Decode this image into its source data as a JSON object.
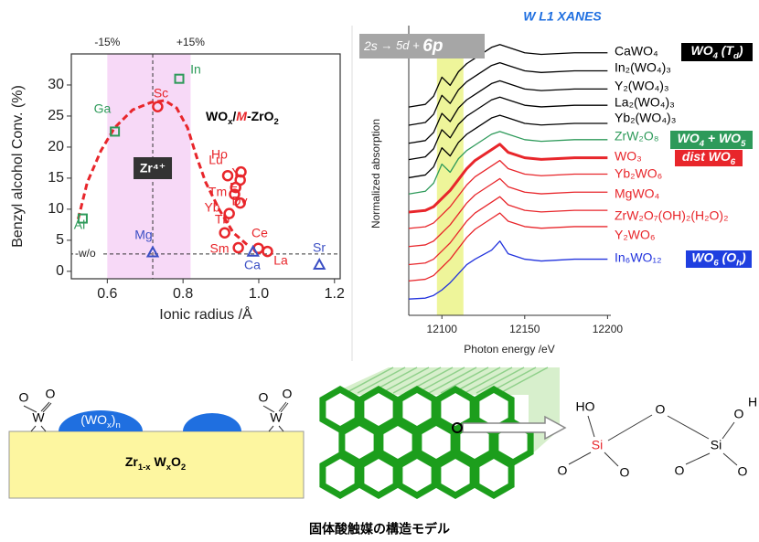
{
  "chart_data": [
    {
      "type": "scatter",
      "title": [
        {
          "text": "WO"
        },
        {
          "text": "x",
          "sub": true
        },
        {
          "text": "/"
        },
        {
          "text": "M",
          "color": "#e8262b",
          "italic": true
        },
        {
          "text": "-ZrO"
        },
        {
          "text": "2",
          "sub": true
        }
      ],
      "x_label": "Ionic radius /Å",
      "y_label": "Benzyl alcohol Conv. (%)",
      "xlim": [
        0.505,
        1.215
      ],
      "ylim": [
        -1.2,
        35
      ],
      "xticks": [
        0.6,
        0.8,
        {
          "value": 1,
          "label": "1.0"
        },
        1.2
      ],
      "yticks": [
        0,
        5,
        10,
        15,
        20,
        25,
        30
      ],
      "highlight": {
        "range": [
          0.6,
          0.82
        ],
        "labels": [
          "-15%",
          "+15%"
        ],
        "color": "#f7d9f7"
      },
      "reference": {
        "value": 0.72,
        "label": "Zr⁴⁺"
      },
      "baseline": {
        "value": 2.8,
        "label": "-w/o"
      },
      "fit": {
        "color": "#e8262b",
        "x": [
          0.523,
          0.547,
          0.583,
          0.619,
          0.667,
          0.716,
          0.752,
          0.783,
          0.812,
          0.836,
          0.86,
          0.896,
          0.933,
          0.969
        ],
        "values": [
          8.4,
          14.3,
          19.4,
          23.1,
          26.0,
          27.2,
          27.5,
          26.3,
          23.1,
          18.4,
          14.3,
          9.9,
          6.2,
          4.3
        ]
      },
      "series": [
        {
          "marker": "square",
          "color": "#2e9a5a",
          "labels": [
            "Al",
            "Ga",
            "In"
          ],
          "x": [
            0.535,
            0.62,
            0.79
          ],
          "values": [
            8.5,
            22.5,
            31
          ]
        },
        {
          "marker": "circle",
          "color": "#e8262b",
          "labels": [
            "Sc",
            "Lu",
            "Ho",
            "Y",
            "Er",
            "Tm",
            "Dy",
            "Yb",
            "Tb",
            "Sm",
            "Ce",
            "La"
          ],
          "x": [
            0.733,
            0.918,
            0.953,
            0.951,
            0.939,
            0.936,
            0.951,
            0.922,
            0.91,
            0.946,
            0.999,
            1.023
          ],
          "values": [
            26.5,
            15.4,
            16.0,
            14.7,
            13.5,
            12.4,
            11.0,
            9.3,
            6.2,
            3.8,
            3.7,
            3.2
          ]
        },
        {
          "marker": "triangle",
          "color": "#3b4fc4",
          "labels": [
            "Mg",
            "Ca",
            "Sr"
          ],
          "x": [
            0.72,
            0.985,
            1.16
          ],
          "values": [
            3,
            3.1,
            1.0
          ]
        }
      ]
    },
    {
      "type": "line",
      "title": "W L1 XANES",
      "x_label": "Photon energy /eV",
      "y_label": "Normalized absorption",
      "xlim": [
        12080,
        12202
      ],
      "ylim": [
        0,
        16
      ],
      "xticks": [
        12100,
        12150,
        12200
      ],
      "highlight": {
        "range": [
          12097,
          12113
        ],
        "color": "#eef59a"
      },
      "banner": [
        {
          "text": "2s",
          "italic": true
        },
        {
          "text": " → 5d + ",
          "italic": true
        },
        {
          "text": "6p",
          "italic": true,
          "bold": true
        }
      ],
      "x": [
        12080,
        12090,
        12095,
        12100,
        12105,
        12110,
        12115,
        12120,
        12130,
        12135,
        12140,
        12150,
        12160,
        12180,
        12200
      ],
      "series": [
        {
          "name": "CaWO₄",
          "color": "#000000",
          "line_width": 1.3,
          "values": [
            11.5,
            11.65,
            12.1,
            13.15,
            12.7,
            13.45,
            13.9,
            14.2,
            14.8,
            14.95,
            14.8,
            14.5,
            14.41,
            14.5,
            14.5
          ]
        },
        {
          "name": "In₂(WO₄)₃",
          "color": "#000000",
          "line_width": 1.3,
          "values": [
            10.5,
            10.65,
            11.1,
            12.15,
            11.7,
            12.45,
            12.9,
            13.2,
            13.8,
            13.95,
            13.8,
            13.5,
            13.41,
            13.5,
            13.5
          ]
        },
        {
          "name": "Y₂(WO₄)₃",
          "color": "#000000",
          "line_width": 1.3,
          "values": [
            9.5,
            9.65,
            10.1,
            11.15,
            10.7,
            11.45,
            11.9,
            12.2,
            12.8,
            12.95,
            12.8,
            12.5,
            12.41,
            12.5,
            12.5
          ]
        },
        {
          "name": "La₂(WO₄)₃",
          "color": "#000000",
          "line_width": 1.3,
          "values": [
            8.6,
            8.75,
            9.2,
            10.25,
            9.8,
            10.55,
            11.0,
            11.3,
            11.9,
            12.05,
            11.9,
            11.6,
            11.51,
            11.6,
            11.6
          ]
        },
        {
          "name": "Yb₂(WO₄)₃",
          "color": "#000000",
          "line_width": 1.3,
          "values": [
            7.6,
            7.75,
            8.2,
            9.25,
            8.8,
            9.55,
            10.0,
            10.3,
            10.9,
            11.05,
            10.9,
            10.6,
            10.51,
            10.6,
            10.6
          ]
        },
        {
          "name": "ZrW₂O₈",
          "color": "#2e9a5a",
          "line_width": 1.3,
          "values": [
            6.7,
            6.85,
            7.3,
            8.35,
            7.9,
            8.65,
            9.1,
            9.4,
            10.0,
            10.15,
            10.0,
            9.7,
            9.61,
            9.7,
            9.7
          ]
        },
        {
          "name": "WO₃",
          "color": "#e8262b",
          "line_width": 3,
          "values": [
            5.7,
            5.79,
            6.0,
            6.45,
            6.9,
            7.5,
            8.1,
            8.55,
            9.15,
            9.45,
            9.0,
            8.7,
            8.61,
            8.7,
            8.7
          ]
        },
        {
          "name": "Yb₂WO₆",
          "color": "#e8262b",
          "line_width": 1.3,
          "values": [
            4.8,
            4.89,
            5.1,
            5.55,
            6.0,
            6.6,
            7.2,
            7.65,
            8.25,
            8.55,
            8.1,
            7.8,
            7.71,
            7.8,
            7.8
          ]
        },
        {
          "name": "MgWO₄",
          "color": "#e8262b",
          "line_width": 1.3,
          "values": [
            3.8,
            3.89,
            4.1,
            4.55,
            5.0,
            5.6,
            6.2,
            6.65,
            7.25,
            7.55,
            7.1,
            6.8,
            6.71,
            6.8,
            6.8
          ]
        },
        {
          "name": "ZrW₂O₇(OH)₂(H₂O)₂",
          "color": "#e8262b",
          "line_width": 1.3,
          "values": [
            2.8,
            2.89,
            3.1,
            3.55,
            4.0,
            4.6,
            5.2,
            5.65,
            6.25,
            6.55,
            6.1,
            5.8,
            5.71,
            5.8,
            5.8
          ]
        },
        {
          "name": "Y₂WO₆",
          "color": "#e8262b",
          "line_width": 1.3,
          "values": [
            1.9,
            1.99,
            2.2,
            2.65,
            3.1,
            3.7,
            4.3,
            4.75,
            5.35,
            5.65,
            5.2,
            4.9,
            4.81,
            4.9,
            4.9
          ]
        },
        {
          "name": "In₆WO₁₂",
          "color": "#2233dd",
          "line_width": 1.3,
          "values": [
            0.9,
            0.95,
            1.1,
            1.4,
            1.8,
            2.3,
            2.8,
            3.1,
            3.6,
            4.1,
            3.4,
            3.1,
            3.0,
            3.1,
            3.1
          ]
        }
      ],
      "badges": [
        {
          "color": "#000000",
          "parts": [
            {
              "text": "WO"
            },
            {
              "text": "4",
              "sub": true
            },
            {
              "text": " (T"
            },
            {
              "text": "d",
              "sub": true
            },
            {
              "text": ")"
            }
          ]
        },
        {
          "color": "#2e9a5a",
          "parts": [
            {
              "text": "WO"
            },
            {
              "text": "4",
              "sub": true
            },
            {
              "text": " +  WO"
            },
            {
              "text": "5",
              "sub": true
            }
          ]
        },
        {
          "color": "#e8262b",
          "parts": [
            {
              "text": "dist WO"
            },
            {
              "text": "6",
              "sub": true
            }
          ]
        },
        {
          "color": "#1f3fe0",
          "parts": [
            {
              "text": "WO"
            },
            {
              "text": "6",
              "sub": true
            },
            {
              "text": " (O"
            },
            {
              "text": "h",
              "sub": true
            },
            {
              "text": ")"
            }
          ]
        }
      ]
    }
  ],
  "diagram": {
    "support": [
      {
        "text": "Zr"
      },
      {
        "text": "1-x",
        "sub": true
      },
      {
        "text": " W"
      },
      {
        "text": "x",
        "sub": true
      },
      {
        "text": "O"
      },
      {
        "text": "2",
        "sub": true
      }
    ],
    "cluster": [
      {
        "text": "(WO"
      },
      {
        "text": "x",
        "sub": true
      },
      {
        "text": ")"
      },
      {
        "text": "n",
        "sub": true
      }
    ],
    "surface_species": {
      "oxygen": "O",
      "tungsten": "W"
    },
    "silanol": {
      "hydroxyl": "HO",
      "silicon": "Si",
      "oxygen": "O",
      "hydrogen": "H"
    },
    "caption": "固体酸触媒の構造モデル"
  }
}
